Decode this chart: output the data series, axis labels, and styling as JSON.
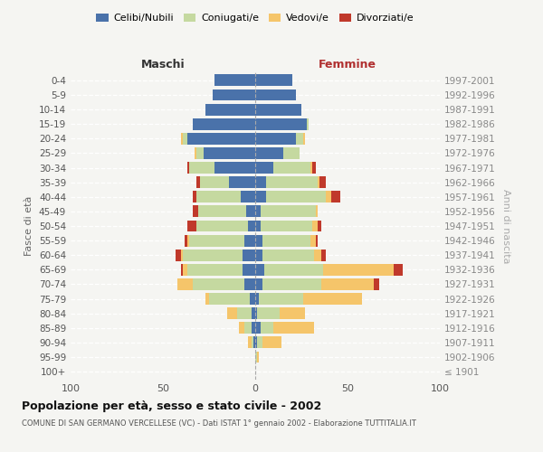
{
  "age_groups": [
    "100+",
    "95-99",
    "90-94",
    "85-89",
    "80-84",
    "75-79",
    "70-74",
    "65-69",
    "60-64",
    "55-59",
    "50-54",
    "45-49",
    "40-44",
    "35-39",
    "30-34",
    "25-29",
    "20-24",
    "15-19",
    "10-14",
    "5-9",
    "0-4"
  ],
  "birth_years": [
    "≤ 1901",
    "1902-1906",
    "1907-1911",
    "1912-1916",
    "1917-1921",
    "1922-1926",
    "1927-1931",
    "1932-1936",
    "1937-1941",
    "1942-1946",
    "1947-1951",
    "1952-1956",
    "1957-1961",
    "1962-1966",
    "1967-1971",
    "1972-1976",
    "1977-1981",
    "1982-1986",
    "1987-1991",
    "1992-1996",
    "1997-2001"
  ],
  "maschi_celibi": [
    0,
    0,
    1,
    2,
    2,
    3,
    6,
    7,
    7,
    6,
    4,
    5,
    8,
    14,
    22,
    28,
    37,
    34,
    27,
    23,
    22
  ],
  "maschi_coniugati": [
    0,
    0,
    1,
    4,
    8,
    22,
    28,
    30,
    32,
    30,
    28,
    26,
    24,
    16,
    14,
    4,
    2,
    0,
    0,
    0,
    0
  ],
  "maschi_vedovi": [
    0,
    0,
    2,
    3,
    5,
    2,
    8,
    2,
    1,
    1,
    0,
    0,
    0,
    0,
    0,
    1,
    1,
    0,
    0,
    0,
    0
  ],
  "maschi_divorziati": [
    0,
    0,
    0,
    0,
    0,
    0,
    0,
    1,
    3,
    1,
    5,
    3,
    2,
    2,
    1,
    0,
    0,
    0,
    0,
    0,
    0
  ],
  "femmine_nubili": [
    0,
    0,
    1,
    3,
    1,
    2,
    4,
    5,
    4,
    4,
    3,
    3,
    6,
    6,
    10,
    15,
    22,
    28,
    25,
    22,
    20
  ],
  "femmine_coniugate": [
    0,
    1,
    3,
    7,
    12,
    24,
    32,
    32,
    28,
    26,
    28,
    30,
    32,
    28,
    20,
    9,
    4,
    1,
    0,
    0,
    0
  ],
  "femmine_vedove": [
    0,
    1,
    10,
    22,
    14,
    32,
    28,
    38,
    4,
    3,
    3,
    1,
    3,
    1,
    1,
    0,
    1,
    0,
    0,
    0,
    0
  ],
  "femmine_divorziate": [
    0,
    0,
    0,
    0,
    0,
    0,
    3,
    5,
    2,
    1,
    2,
    0,
    5,
    3,
    2,
    0,
    0,
    0,
    0,
    0,
    0
  ],
  "color_blue": "#4a72aa",
  "color_green": "#c5d9a0",
  "color_yellow": "#f5c56a",
  "color_red": "#c0392b",
  "bg_color": "#f5f5f2",
  "xlim": 100,
  "title": "Popolazione per età, sesso e stato civile - 2002",
  "subtitle": "COMUNE DI SAN GERMANO VERCELLESE (VC) - Dati ISTAT 1° gennaio 2002 - Elaborazione TUTTITALIA.IT",
  "ylabel_left": "Fasce di età",
  "ylabel_right": "Anni di nascita",
  "label_maschi": "Maschi",
  "label_femmine": "Femmine",
  "legend_labels": [
    "Celibi/Nubili",
    "Coniugati/e",
    "Vedovi/e",
    "Divorziati/e"
  ]
}
